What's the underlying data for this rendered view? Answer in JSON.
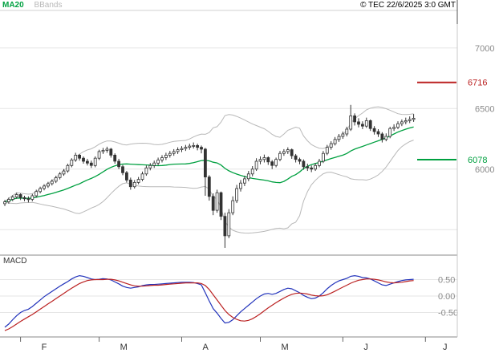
{
  "header": {
    "copyright": "© TEC 22/6/2025 3:0 GMT"
  },
  "chart_data": {
    "type": "candlestick",
    "title": "",
    "overlays": {
      "ma20": {
        "label": "MA20",
        "color": "#00a040"
      },
      "bbands": {
        "label": "BBands",
        "color": "#b8b8b8"
      }
    },
    "price_panel": {
      "range": {
        "top": 7310,
        "bottom": 5290
      },
      "grid_values": [
        7000,
        6500,
        6000,
        5500
      ],
      "y_ticks": [
        {
          "label": "7000",
          "value": 7000
        },
        {
          "label": "6500",
          "value": 6500
        },
        {
          "label": "6000",
          "value": 6000
        }
      ],
      "levels": [
        {
          "label": "6716",
          "value": 6716,
          "color": "#bb2222"
        },
        {
          "label": "6078",
          "value": 6078,
          "color": "#00a040"
        }
      ]
    },
    "candles": [
      [
        5715,
        5745,
        5695,
        5730
      ],
      [
        5730,
        5765,
        5715,
        5750
      ],
      [
        5750,
        5785,
        5735,
        5770
      ],
      [
        5770,
        5805,
        5755,
        5790
      ],
      [
        5790,
        5800,
        5745,
        5765
      ],
      [
        5765,
        5780,
        5735,
        5755
      ],
      [
        5755,
        5775,
        5725,
        5750
      ],
      [
        5750,
        5795,
        5735,
        5780
      ],
      [
        5780,
        5830,
        5765,
        5815
      ],
      [
        5815,
        5855,
        5800,
        5840
      ],
      [
        5840,
        5875,
        5825,
        5860
      ],
      [
        5860,
        5895,
        5845,
        5880
      ],
      [
        5880,
        5915,
        5865,
        5900
      ],
      [
        5900,
        5945,
        5885,
        5930
      ],
      [
        5930,
        5975,
        5915,
        5960
      ],
      [
        5960,
        6000,
        5945,
        5985
      ],
      [
        5985,
        6045,
        5970,
        6030
      ],
      [
        6030,
        6090,
        6015,
        6075
      ],
      [
        6075,
        6135,
        6060,
        6115
      ],
      [
        6115,
        6125,
        6070,
        6090
      ],
      [
        6090,
        6105,
        6045,
        6065
      ],
      [
        6065,
        6085,
        6030,
        6050
      ],
      [
        6050,
        6070,
        6010,
        6030
      ],
      [
        6030,
        6105,
        6015,
        6090
      ],
      [
        6090,
        6160,
        6075,
        6145
      ],
      [
        6145,
        6175,
        6125,
        6155
      ],
      [
        6155,
        6185,
        6135,
        6165
      ],
      [
        6165,
        6175,
        6095,
        6115
      ],
      [
        6115,
        6130,
        6045,
        6065
      ],
      [
        6065,
        6085,
        6000,
        6020
      ],
      [
        6020,
        6035,
        5950,
        5970
      ],
      [
        5970,
        5985,
        5890,
        5910
      ],
      [
        5910,
        5930,
        5830,
        5855
      ],
      [
        5855,
        5910,
        5840,
        5890
      ],
      [
        5890,
        5935,
        5875,
        5915
      ],
      [
        5915,
        5980,
        5900,
        5960
      ],
      [
        5960,
        6030,
        5945,
        6010
      ],
      [
        6010,
        6050,
        5990,
        6030
      ],
      [
        6030,
        6070,
        6010,
        6050
      ],
      [
        6050,
        6095,
        6030,
        6075
      ],
      [
        6075,
        6115,
        6055,
        6095
      ],
      [
        6095,
        6135,
        6075,
        6115
      ],
      [
        6115,
        6150,
        6095,
        6130
      ],
      [
        6130,
        6165,
        6110,
        6145
      ],
      [
        6145,
        6180,
        6125,
        6160
      ],
      [
        6160,
        6190,
        6140,
        6170
      ],
      [
        6170,
        6200,
        6150,
        6180
      ],
      [
        6180,
        6210,
        6160,
        6190
      ],
      [
        6190,
        6220,
        6170,
        6195
      ],
      [
        6195,
        6210,
        6155,
        6180
      ],
      [
        6180,
        6195,
        6130,
        6165
      ],
      [
        6165,
        6175,
        5780,
        5935
      ],
      [
        5935,
        5950,
        5740,
        5775
      ],
      [
        5775,
        5800,
        5620,
        5660
      ],
      [
        5660,
        5830,
        5640,
        5805
      ],
      [
        5805,
        5815,
        5580,
        5610
      ],
      [
        5610,
        5640,
        5350,
        5450
      ],
      [
        5450,
        5670,
        5430,
        5640
      ],
      [
        5640,
        5775,
        5620,
        5740
      ],
      [
        5740,
        5870,
        5720,
        5840
      ],
      [
        5840,
        5910,
        5815,
        5885
      ],
      [
        5885,
        5945,
        5860,
        5920
      ],
      [
        5920,
        5985,
        5900,
        5960
      ],
      [
        5960,
        6025,
        5940,
        6000
      ],
      [
        6000,
        6090,
        5985,
        6065
      ],
      [
        6065,
        6105,
        6040,
        6080
      ],
      [
        6080,
        6120,
        6055,
        6095
      ],
      [
        6095,
        6105,
        6035,
        6060
      ],
      [
        6060,
        6075,
        6000,
        6030
      ],
      [
        6030,
        6095,
        6015,
        6080
      ],
      [
        6080,
        6150,
        6065,
        6130
      ],
      [
        6130,
        6165,
        6110,
        6145
      ],
      [
        6145,
        6180,
        6125,
        6160
      ],
      [
        6160,
        6170,
        6085,
        6110
      ],
      [
        6110,
        6125,
        6055,
        6080
      ],
      [
        6080,
        6095,
        6040,
        6065
      ],
      [
        6065,
        6080,
        5995,
        6020
      ],
      [
        6020,
        6045,
        5985,
        6010
      ],
      [
        6010,
        6030,
        5975,
        6000
      ],
      [
        6000,
        6050,
        5985,
        6030
      ],
      [
        6030,
        6085,
        6015,
        6065
      ],
      [
        6065,
        6150,
        6050,
        6130
      ],
      [
        6130,
        6200,
        6115,
        6180
      ],
      [
        6180,
        6230,
        6160,
        6210
      ],
      [
        6210,
        6265,
        6195,
        6245
      ],
      [
        6245,
        6290,
        6225,
        6270
      ],
      [
        6270,
        6310,
        6250,
        6290
      ],
      [
        6290,
        6350,
        6270,
        6330
      ],
      [
        6330,
        6530,
        6315,
        6440
      ],
      [
        6440,
        6460,
        6360,
        6390
      ],
      [
        6390,
        6420,
        6345,
        6370
      ],
      [
        6370,
        6395,
        6330,
        6355
      ],
      [
        6355,
        6425,
        6340,
        6400
      ],
      [
        6400,
        6410,
        6315,
        6335
      ],
      [
        6335,
        6355,
        6285,
        6310
      ],
      [
        6310,
        6330,
        6265,
        6290
      ],
      [
        6290,
        6305,
        6220,
        6245
      ],
      [
        6245,
        6295,
        6230,
        6270
      ],
      [
        6270,
        6350,
        6255,
        6335
      ],
      [
        6335,
        6370,
        6315,
        6345
      ],
      [
        6345,
        6395,
        6330,
        6375
      ],
      [
        6375,
        6410,
        6355,
        6390
      ],
      [
        6390,
        6425,
        6370,
        6400
      ],
      [
        6400,
        6435,
        6380,
        6410
      ],
      [
        6410,
        6455,
        6390,
        6420
      ]
    ],
    "x_axis": {
      "month_ticks": [
        {
          "label": "F",
          "index": 4
        },
        {
          "label": "M",
          "index": 24
        },
        {
          "label": "A",
          "index": 45
        },
        {
          "label": "M",
          "index": 65
        },
        {
          "label": "J",
          "index": 86
        },
        {
          "label": "J",
          "index": 107
        }
      ]
    },
    "macd_panel": {
      "label": "MACD",
      "y_ticks": [
        {
          "label": "0.50",
          "value": 0.5
        },
        {
          "label": "0.00",
          "value": 0.0
        },
        {
          "label": "-0.50",
          "value": -0.5
        }
      ],
      "macd_line": {
        "color": "#2233bb",
        "values": [
          -0.95,
          -0.85,
          -0.72,
          -0.6,
          -0.5,
          -0.44,
          -0.4,
          -0.32,
          -0.22,
          -0.12,
          -0.02,
          0.06,
          0.14,
          0.22,
          0.3,
          0.37,
          0.44,
          0.52,
          0.58,
          0.62,
          0.6,
          0.56,
          0.52,
          0.5,
          0.51,
          0.53,
          0.52,
          0.49,
          0.43,
          0.37,
          0.3,
          0.26,
          0.24,
          0.26,
          0.28,
          0.32,
          0.34,
          0.35,
          0.35,
          0.36,
          0.37,
          0.38,
          0.39,
          0.4,
          0.41,
          0.42,
          0.42,
          0.42,
          0.41,
          0.38,
          0.34,
          0.1,
          -0.15,
          -0.38,
          -0.52,
          -0.68,
          -0.82,
          -0.8,
          -0.72,
          -0.6,
          -0.48,
          -0.38,
          -0.28,
          -0.18,
          -0.08,
          0.0,
          0.06,
          0.08,
          0.05,
          0.08,
          0.14,
          0.2,
          0.24,
          0.22,
          0.16,
          0.1,
          0.02,
          -0.04,
          -0.08,
          -0.06,
          0.0,
          0.1,
          0.22,
          0.32,
          0.4,
          0.46,
          0.5,
          0.54,
          0.6,
          0.62,
          0.6,
          0.56,
          0.55,
          0.52,
          0.46,
          0.4,
          0.34,
          0.32,
          0.36,
          0.4,
          0.44,
          0.47,
          0.49,
          0.5,
          0.51
        ]
      },
      "signal_line": {
        "color": "#bb2222",
        "values": [
          -1.05,
          -1.0,
          -0.93,
          -0.85,
          -0.77,
          -0.7,
          -0.63,
          -0.56,
          -0.48,
          -0.4,
          -0.32,
          -0.24,
          -0.16,
          -0.08,
          0.0,
          0.08,
          0.16,
          0.24,
          0.31,
          0.38,
          0.43,
          0.47,
          0.49,
          0.5,
          0.5,
          0.5,
          0.51,
          0.51,
          0.49,
          0.46,
          0.42,
          0.38,
          0.34,
          0.31,
          0.3,
          0.3,
          0.31,
          0.32,
          0.33,
          0.33,
          0.34,
          0.35,
          0.36,
          0.37,
          0.38,
          0.39,
          0.4,
          0.4,
          0.4,
          0.4,
          0.38,
          0.32,
          0.2,
          0.04,
          -0.12,
          -0.28,
          -0.44,
          -0.56,
          -0.65,
          -0.71,
          -0.75,
          -0.76,
          -0.74,
          -0.69,
          -0.62,
          -0.54,
          -0.45,
          -0.36,
          -0.28,
          -0.2,
          -0.13,
          -0.06,
          0.0,
          0.05,
          0.08,
          0.09,
          0.08,
          0.06,
          0.03,
          0.01,
          0.0,
          0.01,
          0.04,
          0.09,
          0.15,
          0.21,
          0.27,
          0.33,
          0.39,
          0.44,
          0.48,
          0.5,
          0.52,
          0.52,
          0.51,
          0.49,
          0.46,
          0.43,
          0.41,
          0.4,
          0.41,
          0.42,
          0.44,
          0.46,
          0.47
        ]
      }
    }
  }
}
